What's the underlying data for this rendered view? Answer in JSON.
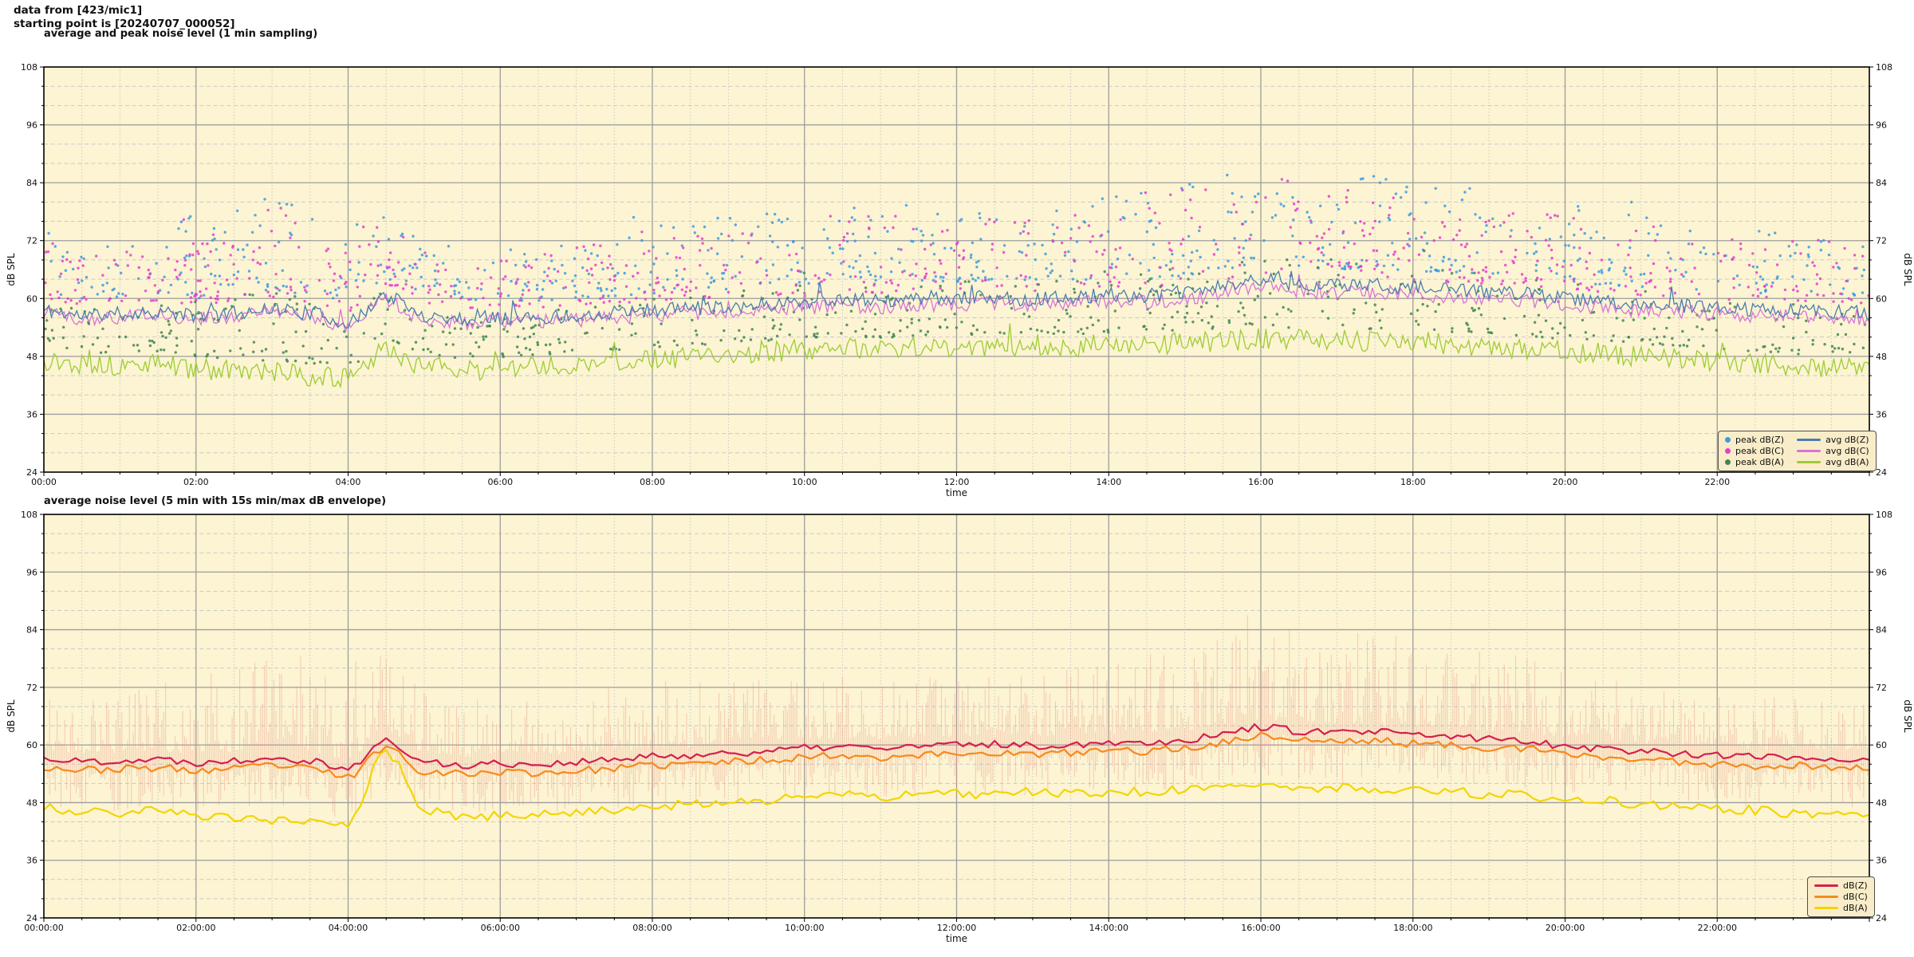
{
  "header": {
    "line1": "data from [423/mic1]",
    "line2": "starting point is [20240707_000052]"
  },
  "colors": {
    "page_background": "#ffffff",
    "plot_background": "#fcf4d2",
    "grid_major": "#9d9d9d",
    "grid_minor": "#c9c9c9",
    "spine": "#000000",
    "text": "#111111",
    "legend_background": "#f9edc9",
    "legend_border": "#52504a"
  },
  "chart_data": [
    {
      "type": "line+scatter",
      "title": "average and peak noise level (1 min sampling)",
      "xlabel": "time",
      "ylabel": "dB SPL",
      "ylim": [
        24,
        108
      ],
      "yticks": [
        24,
        36,
        48,
        60,
        72,
        84,
        96,
        108
      ],
      "xtick_hours": [
        0,
        2,
        4,
        6,
        8,
        10,
        12,
        14,
        16,
        18,
        20,
        22
      ],
      "xtick_labels": [
        "00:00",
        "02:00",
        "04:00",
        "06:00",
        "08:00",
        "10:00",
        "12:00",
        "14:00",
        "16:00",
        "18:00",
        "20:00",
        "22:00"
      ],
      "grid": {
        "major_db": 12,
        "minor_db": 4,
        "major_hours": 2,
        "minor_hours": 0.5,
        "legend_position": "lower right"
      },
      "legend_peaks": [
        {
          "label": "peak dB(Z)",
          "color": "#3d9ae1"
        },
        {
          "label": "peak dB(C)",
          "color": "#e83bcf"
        },
        {
          "label": "peak dB(A)",
          "color": "#3f8551"
        }
      ],
      "legend_avgs": [
        {
          "label": "avg dB(Z)",
          "color": "#4a7dad"
        },
        {
          "label": "avg dB(C)",
          "color": "#d873d8"
        },
        {
          "label": "avg dB(A)",
          "color": "#9dcc33"
        }
      ],
      "series": {
        "avg_dBZ": {
          "label": "avg dB(Z)",
          "color": "#4a7dad",
          "noise_amp": 1.5,
          "seed": 11,
          "base_30min": [
            57.5,
            56.5,
            56.8,
            57.2,
            56.4,
            57.0,
            58.0,
            57.0,
            55.0,
            60.5,
            56.5,
            55.8,
            56.2,
            56.0,
            56.5,
            57.0,
            57.6,
            58.0,
            58.4,
            58.8,
            59.4,
            59.8,
            59.4,
            59.8,
            60.0,
            60.3,
            59.8,
            60.2,
            60.8,
            60.6,
            61.2,
            62.5,
            64.0,
            63.0,
            62.6,
            62.8,
            62.2,
            61.8,
            61.4,
            61.0,
            60.0,
            59.4,
            58.8,
            58.4,
            58.0,
            57.6,
            57.6,
            57.2,
            57.0
          ]
        },
        "avg_dBC": {
          "label": "avg dB(C)",
          "color": "#d873d8",
          "noise_amp": 1.5,
          "seed": 12,
          "base_30min": [
            56.8,
            55.9,
            56.2,
            56.6,
            55.8,
            56.4,
            57.3,
            56.3,
            54.4,
            59.5,
            55.8,
            55.0,
            55.4,
            55.2,
            55.6,
            56.0,
            56.6,
            57.0,
            57.3,
            57.6,
            58.2,
            58.6,
            58.2,
            58.6,
            58.8,
            59.0,
            58.6,
            59.0,
            59.5,
            59.3,
            59.9,
            61.0,
            62.4,
            61.5,
            61.2,
            61.4,
            60.8,
            60.4,
            60.0,
            59.6,
            58.8,
            58.2,
            57.6,
            57.2,
            56.8,
            56.5,
            56.5,
            56.1,
            56.0
          ]
        },
        "avg_dBA": {
          "label": "avg dB(A)",
          "color": "#9dcc33",
          "noise_amp": 2.2,
          "seed": 13,
          "base_30min": [
            47.0,
            46.4,
            46.0,
            46.5,
            45.4,
            45.0,
            44.6,
            44.0,
            43.4,
            49.0,
            46.0,
            45.0,
            45.4,
            45.8,
            46.4,
            46.8,
            47.4,
            47.8,
            48.3,
            48.8,
            49.4,
            49.8,
            49.4,
            49.8,
            50.0,
            50.0,
            50.4,
            50.0,
            50.5,
            50.4,
            50.8,
            51.2,
            51.8,
            51.4,
            51.4,
            51.0,
            51.0,
            50.6,
            50.0,
            49.6,
            49.0,
            48.6,
            48.0,
            47.6,
            47.0,
            46.6,
            46.0,
            45.6,
            45.2
          ]
        }
      },
      "peaks": {
        "peak_dBZ": {
          "label": "peak dB(Z)",
          "color": "#3d9ae1",
          "count": 720,
          "gap_db": 3.5,
          "span_db": 22,
          "seed": 101,
          "over": "avg_dBZ"
        },
        "peak_dBC": {
          "label": "peak dB(C)",
          "color": "#e83bcf",
          "count": 720,
          "gap_db": 3.0,
          "span_db": 21,
          "seed": 102,
          "over": "avg_dBC"
        },
        "peak_dBA": {
          "label": "peak dB(A)",
          "color": "#3f8551",
          "count": 620,
          "gap_db": 2.5,
          "span_db": 16,
          "seed": 103,
          "over": "avg_dBA"
        }
      },
      "day_intensity_hourly": [
        0.6,
        0.55,
        0.8,
        0.9,
        0.8,
        0.55,
        0.5,
        0.6,
        0.7,
        0.7,
        0.75,
        0.75,
        0.7,
        0.7,
        0.8,
        0.95,
        1.0,
        0.9,
        0.85,
        0.8,
        0.75,
        0.7,
        0.6,
        0.65,
        0.6
      ]
    },
    {
      "type": "line+envelope",
      "title": "average noise level (5 min with 15s min/max dB envelope)",
      "xlabel": "time",
      "ylabel": "dB SPL",
      "ylim": [
        24,
        108
      ],
      "yticks": [
        24,
        36,
        48,
        60,
        72,
        84,
        96,
        108
      ],
      "xtick_hours": [
        0,
        2,
        4,
        6,
        8,
        10,
        12,
        14,
        16,
        18,
        20,
        22
      ],
      "xtick_labels": [
        "00:00:00",
        "02:00:00",
        "04:00:00",
        "06:00:00",
        "08:00:00",
        "10:00:00",
        "12:00:00",
        "14:00:00",
        "16:00:00",
        "18:00:00",
        "20:00:00",
        "22:00:00"
      ],
      "grid": {
        "major_db": 12,
        "minor_db": 4,
        "major_hours": 2,
        "minor_hours": 0.5,
        "legend_position": "lower right"
      },
      "legend": [
        {
          "label": "dB(Z)",
          "color": "#d4204d"
        },
        {
          "label": "dB(C)",
          "color": "#f68a1c"
        },
        {
          "label": "dB(A)",
          "color": "#f3d500"
        }
      ],
      "series": {
        "dBZ": {
          "label": "dB(Z)",
          "color": "#d4204d",
          "noise_amp": 0.8,
          "seed": 22,
          "base_30min": [
            57.2,
            56.6,
            56.8,
            57.0,
            56.4,
            56.8,
            57.6,
            56.8,
            55.2,
            60.8,
            56.4,
            55.8,
            56.2,
            56.0,
            56.4,
            56.9,
            57.5,
            57.9,
            58.3,
            58.7,
            59.3,
            59.7,
            59.3,
            59.7,
            60.0,
            60.2,
            59.8,
            60.1,
            60.7,
            60.5,
            61.1,
            62.3,
            63.8,
            62.9,
            62.5,
            62.7,
            62.1,
            61.7,
            61.3,
            60.9,
            59.9,
            59.3,
            58.7,
            58.3,
            57.9,
            57.5,
            57.5,
            57.1,
            56.9
          ]
        },
        "dBC": {
          "label": "dB(C)",
          "color": "#f68a1c",
          "noise_amp": 0.8,
          "seed": 23,
          "base_30min": [
            55.4,
            54.8,
            55.0,
            55.2,
            54.6,
            55.0,
            55.8,
            55.0,
            53.4,
            59.6,
            54.6,
            54.0,
            54.4,
            54.2,
            54.6,
            55.1,
            55.7,
            56.1,
            56.5,
            56.9,
            57.5,
            57.9,
            57.5,
            57.9,
            58.2,
            58.4,
            58.0,
            58.3,
            58.9,
            58.7,
            59.3,
            60.5,
            62.0,
            61.1,
            60.7,
            60.9,
            60.3,
            59.9,
            59.5,
            59.1,
            58.1,
            57.5,
            56.9,
            56.5,
            56.1,
            55.7,
            55.7,
            55.3,
            55.1
          ]
        },
        "dBA": {
          "label": "dB(A)",
          "color": "#f3d500",
          "noise_amp": 1.0,
          "seed": 24,
          "base_30min": [
            46.8,
            46.2,
            45.8,
            46.3,
            45.2,
            44.8,
            44.4,
            43.8,
            43.6,
            58.5,
            46.4,
            44.8,
            45.2,
            45.6,
            46.2,
            46.6,
            47.2,
            47.6,
            48.1,
            48.6,
            49.2,
            49.6,
            49.2,
            49.6,
            49.8,
            49.8,
            50.2,
            49.8,
            50.3,
            50.2,
            50.6,
            51.0,
            51.6,
            51.2,
            51.2,
            50.8,
            50.8,
            50.4,
            49.8,
            49.4,
            48.8,
            48.4,
            47.8,
            47.4,
            46.8,
            46.4,
            45.8,
            45.4,
            45.0
          ]
        }
      },
      "envelope": {
        "around": "dBZ",
        "color": "rgba(230,132,120,0.38)",
        "step_min": 1.5,
        "up_base_db": 2,
        "up_span_db": 22,
        "up_pow": 2.2,
        "down_base_db": 1.5,
        "down_span_db": 9,
        "down_pow": 1.8,
        "seed": 201
      },
      "env_intensity_hourly": [
        0.55,
        0.5,
        0.85,
        0.95,
        1.0,
        0.65,
        0.5,
        0.55,
        0.65,
        0.6,
        0.6,
        0.6,
        0.55,
        0.6,
        0.75,
        0.9,
        1.0,
        0.95,
        0.8,
        0.75,
        0.7,
        0.5,
        0.45,
        0.5,
        0.45
      ]
    }
  ]
}
